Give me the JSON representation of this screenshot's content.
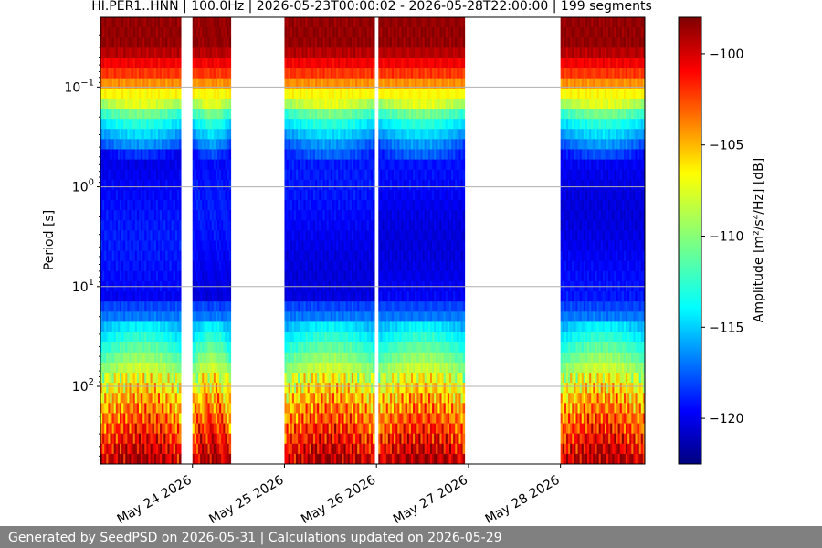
{
  "chart_data": {
    "type": "heatmap",
    "title": "HI.PER1..HNN | 100.0Hz | 2026-05-23T00:00:02 - 2026-05-28T22:00:00 | 199 segments",
    "ylabel": "Period [s]",
    "y_scale": "log",
    "y_inverted": true,
    "y_ticks": [
      {
        "value": 0.1,
        "base": "10",
        "exp": "−1"
      },
      {
        "value": 1,
        "base": "10",
        "exp": "0"
      },
      {
        "value": 10,
        "base": "10",
        "exp": "1"
      },
      {
        "value": 100,
        "base": "10",
        "exp": "2"
      }
    ],
    "ylim": [
      0.02,
      600
    ],
    "x_ticks": [
      "May 24 2026",
      "May 25 2026",
      "May 26 2026",
      "May 27 2026",
      "May 28 2026"
    ],
    "xlim": [
      "2026-05-23T00:00:02",
      "2026-05-28T22:00:00"
    ],
    "segments": [
      {
        "start": "2026-05-23T00:00",
        "end": "2026-05-23T21:00"
      },
      {
        "start": "2026-05-24T00:00",
        "end": "2026-05-24T10:00"
      },
      {
        "start": "2026-05-25T00:00",
        "end": "2026-05-25T23:30"
      },
      {
        "start": "2026-05-26T00:30",
        "end": "2026-05-26T23:00"
      },
      {
        "start": "2026-05-28T00:00",
        "end": "2026-05-28T22:00"
      }
    ],
    "grid": "horizontal",
    "colorbar": {
      "label": "Amplitude [m²/s⁴/Hz] [dB]",
      "range": [
        -122.5,
        -98
      ],
      "ticks": [
        "−100",
        "−105",
        "−110",
        "−115",
        "−120"
      ],
      "tick_values": [
        -100,
        -105,
        -110,
        -115,
        -120
      ],
      "colormap": "jet"
    }
  },
  "footer": {
    "text": "Generated by SeedPSD on 2026-05-31 | Calculations updated on 2026-05-29"
  }
}
